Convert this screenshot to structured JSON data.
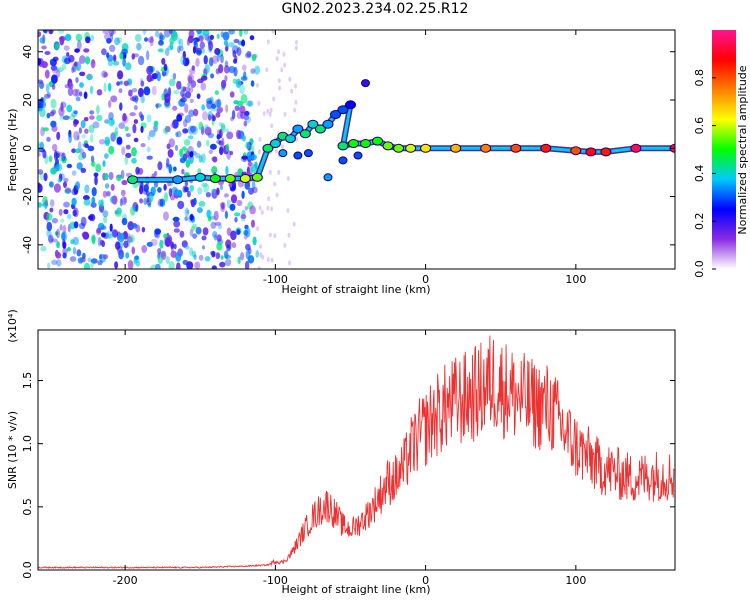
{
  "figure": {
    "title": "GN02.2023.234.02.25.R12"
  },
  "chart_data": [
    {
      "type": "heatmap",
      "title": "",
      "xlabel": "Height of straight line (km)",
      "ylabel": "Frequency (Hz)",
      "xlim": [
        -258,
        166
      ],
      "ylim": [
        -50,
        49
      ],
      "xticks": [
        -200,
        -100,
        0,
        100
      ],
      "xtick_labels": [
        "-200",
        "-100",
        "0",
        "100"
      ],
      "yticks": [
        -40,
        -20,
        0,
        20,
        40
      ],
      "ytick_labels": [
        "-40",
        "-20",
        "0",
        "20",
        "40"
      ],
      "colorbar": {
        "label": "Normalized spectral amplitude",
        "range": [
          0,
          1
        ],
        "ticks": [
          0,
          0.2,
          0.4,
          0.6,
          0.8
        ],
        "tick_labels": [
          "0.0",
          "0.2",
          "0.4",
          "0.6",
          "0.8"
        ],
        "colors": [
          "#ffffff",
          "#8a2be2",
          "#0000ff",
          "#00c8ff",
          "#00ff00",
          "#ffff00",
          "#ff8000",
          "#ff0000",
          "#ff1493"
        ]
      },
      "noise_region": {
        "x_min": -258,
        "x_max": -112
      },
      "ridge": [
        {
          "x": -195,
          "y": -13,
          "amp": 0.45
        },
        {
          "x": -165,
          "y": -13,
          "amp": 0.35
        },
        {
          "x": -150,
          "y": -12,
          "amp": 0.4
        },
        {
          "x": -140,
          "y": -12.5,
          "amp": 0.5
        },
        {
          "x": -130,
          "y": -12.5,
          "amp": 0.55
        },
        {
          "x": -120,
          "y": -12.5,
          "amp": 0.6
        },
        {
          "x": -112,
          "y": -12,
          "amp": 0.55
        },
        {
          "x": -105,
          "y": 0,
          "amp": 0.45
        },
        {
          "x": -100,
          "y": 2,
          "amp": 0.4
        },
        {
          "x": -95,
          "y": 5,
          "amp": 0.45
        },
        {
          "x": -90,
          "y": 4,
          "amp": 0.4
        },
        {
          "x": -85,
          "y": 8,
          "amp": 0.35
        },
        {
          "x": -80,
          "y": 6,
          "amp": 0.45
        },
        {
          "x": -75,
          "y": 10,
          "amp": 0.4
        },
        {
          "x": -70,
          "y": 8,
          "amp": 0.45
        },
        {
          "x": -65,
          "y": 10,
          "amp": 0.35
        },
        {
          "x": -60,
          "y": 14,
          "amp": 0.3
        },
        {
          "x": -55,
          "y": 16,
          "amp": 0.3
        },
        {
          "x": -50,
          "y": 18,
          "amp": 0.25
        },
        {
          "x": -55,
          "y": 1,
          "amp": 0.45
        },
        {
          "x": -48,
          "y": 2,
          "amp": 0.5
        },
        {
          "x": -40,
          "y": 2,
          "amp": 0.5
        },
        {
          "x": -32,
          "y": 3,
          "amp": 0.5
        },
        {
          "x": -25,
          "y": 1,
          "amp": 0.55
        },
        {
          "x": -18,
          "y": 0,
          "amp": 0.55
        },
        {
          "x": -10,
          "y": 0,
          "amp": 0.6
        },
        {
          "x": 0,
          "y": 0,
          "amp": 0.65
        },
        {
          "x": 20,
          "y": 0,
          "amp": 0.7
        },
        {
          "x": 40,
          "y": 0,
          "amp": 0.75
        },
        {
          "x": 60,
          "y": 0,
          "amp": 0.8
        },
        {
          "x": 80,
          "y": 0,
          "amp": 0.85
        },
        {
          "x": 100,
          "y": -1,
          "amp": 0.8
        },
        {
          "x": 110,
          "y": -1.5,
          "amp": 0.9
        },
        {
          "x": 120,
          "y": -1.5,
          "amp": 0.85
        },
        {
          "x": 140,
          "y": 0,
          "amp": 0.95
        },
        {
          "x": 166,
          "y": 0,
          "amp": 0.95
        }
      ],
      "branches": [
        {
          "x": -95,
          "y": -2,
          "amp": 0.35
        },
        {
          "x": -85,
          "y": -3,
          "amp": 0.3
        },
        {
          "x": -78,
          "y": -2,
          "amp": 0.3
        },
        {
          "x": -65,
          "y": -12,
          "amp": 0.35
        },
        {
          "x": -55,
          "y": -5,
          "amp": 0.3
        },
        {
          "x": -45,
          "y": -3,
          "amp": 0.3
        },
        {
          "x": -40,
          "y": 27,
          "amp": 0.2
        }
      ]
    },
    {
      "type": "line",
      "title": "",
      "xlabel": "Height of straight line (km)",
      "ylabel": "SNR (10 * v/v)",
      "y_multiplier": "(x10⁴)",
      "xlim": [
        -258,
        166
      ],
      "ylim": [
        0,
        1.9
      ],
      "xticks": [
        -200,
        -100,
        0,
        100
      ],
      "xtick_labels": [
        "-200",
        "-100",
        "0",
        "100"
      ],
      "yticks": [
        0,
        0.5,
        1.0,
        1.5
      ],
      "ytick_labels": [
        "0.0",
        "0.5",
        "1.0",
        "1.5"
      ],
      "line_color": "#ee3030",
      "series": [
        {
          "x": [
            -258,
            -200,
            -150,
            -120,
            -105,
            -100,
            -95,
            -90,
            -85,
            -80,
            -75,
            -70,
            -65,
            -60,
            -55,
            -50,
            -45,
            -40,
            -35,
            -30,
            -25,
            -20,
            -15,
            -10,
            -5,
            0,
            5,
            10,
            15,
            20,
            25,
            30,
            35,
            40,
            45,
            50,
            55,
            60,
            65,
            70,
            75,
            80,
            85,
            90,
            95,
            100,
            105,
            110,
            115,
            120,
            130,
            140,
            150,
            160,
            166
          ],
          "y": [
            0.02,
            0.02,
            0.02,
            0.03,
            0.04,
            0.07,
            0.06,
            0.12,
            0.22,
            0.33,
            0.42,
            0.48,
            0.52,
            0.44,
            0.35,
            0.32,
            0.36,
            0.42,
            0.5,
            0.6,
            0.7,
            0.72,
            0.8,
            0.95,
            1.05,
            1.12,
            1.2,
            1.25,
            1.3,
            1.33,
            1.35,
            1.38,
            1.4,
            1.45,
            1.5,
            1.45,
            1.42,
            1.38,
            1.35,
            1.32,
            1.3,
            1.3,
            1.25,
            1.15,
            1.05,
            0.98,
            0.92,
            0.88,
            0.82,
            0.8,
            0.75,
            0.72,
            0.75,
            0.75,
            0.74
          ]
        }
      ]
    }
  ]
}
